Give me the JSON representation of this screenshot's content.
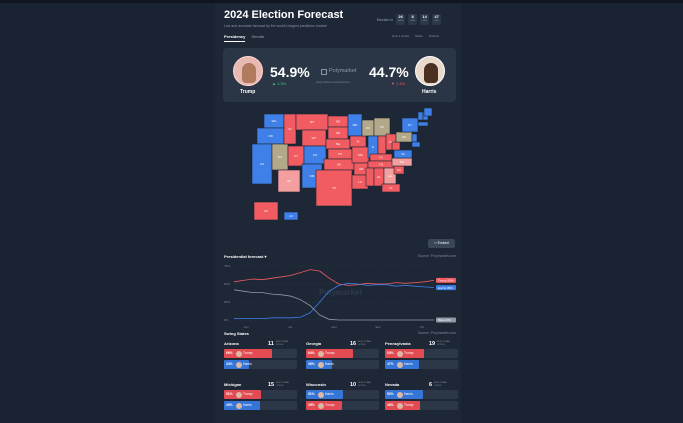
{
  "page": {
    "title": "2024 Election Forecast",
    "subtitle": "Live and accurate forecast by the world's largest prediction market"
  },
  "countdown": {
    "label": "Election in",
    "units": [
      {
        "n": "26",
        "u": "DAYS"
      },
      {
        "n": "8",
        "u": "HRS"
      },
      {
        "n": "14",
        "u": "MIN"
      },
      {
        "n": "47",
        "u": "SEC"
      }
    ]
  },
  "tabs": [
    "Presidency",
    "Senate"
  ],
  "tab_actions": [
    "How it works",
    "Share",
    "Embed"
  ],
  "summary": {
    "trump": {
      "name": "Trump",
      "pct": "54.9%",
      "change": "▲ 1.3%"
    },
    "harris": {
      "name": "Harris",
      "pct": "44.7%",
      "change": "▼ 1.4%"
    },
    "brand": "Polymarket",
    "url": "polymarket.com/elections"
  },
  "map": {
    "colors": {
      "solid_red": "#f15c62",
      "lean_red": "#f49ea0",
      "solid_blue": "#3e7fe8",
      "tossup": "#b3a88a",
      "lean_blue": "#8cb2ee"
    },
    "states": [
      {
        "id": "WA",
        "c": "solid_blue"
      },
      {
        "id": "OR",
        "c": "solid_blue"
      },
      {
        "id": "CA",
        "c": "solid_blue"
      },
      {
        "id": "NV",
        "c": "tossup"
      },
      {
        "id": "ID",
        "c": "solid_red"
      },
      {
        "id": "MT",
        "c": "solid_red"
      },
      {
        "id": "WY",
        "c": "solid_red"
      },
      {
        "id": "UT",
        "c": "solid_red"
      },
      {
        "id": "AZ",
        "c": "lean_red"
      },
      {
        "id": "CO",
        "c": "solid_blue"
      },
      {
        "id": "NM",
        "c": "solid_blue"
      },
      {
        "id": "ND",
        "c": "solid_red"
      },
      {
        "id": "SD",
        "c": "solid_red"
      },
      {
        "id": "NE",
        "c": "solid_red"
      },
      {
        "id": "KS",
        "c": "solid_red"
      },
      {
        "id": "OK",
        "c": "solid_red"
      },
      {
        "id": "TX",
        "c": "solid_red"
      },
      {
        "id": "MN",
        "c": "solid_blue"
      },
      {
        "id": "IA",
        "c": "solid_red"
      },
      {
        "id": "MO",
        "c": "solid_red"
      },
      {
        "id": "AR",
        "c": "solid_red"
      },
      {
        "id": "LA",
        "c": "solid_red"
      },
      {
        "id": "WI",
        "c": "tossup"
      },
      {
        "id": "MI",
        "c": "tossup"
      },
      {
        "id": "IL",
        "c": "solid_blue"
      },
      {
        "id": "IN",
        "c": "solid_red"
      },
      {
        "id": "OH",
        "c": "solid_red"
      },
      {
        "id": "KY",
        "c": "solid_red"
      },
      {
        "id": "TN",
        "c": "solid_red"
      },
      {
        "id": "MS",
        "c": "solid_red"
      },
      {
        "id": "AL",
        "c": "solid_red"
      },
      {
        "id": "GA",
        "c": "lean_red"
      },
      {
        "id": "FL",
        "c": "solid_red"
      },
      {
        "id": "SC",
        "c": "solid_red"
      },
      {
        "id": "NC",
        "c": "lean_red"
      },
      {
        "id": "VA",
        "c": "solid_blue"
      },
      {
        "id": "WV",
        "c": "solid_red"
      },
      {
        "id": "PA",
        "c": "tossup"
      },
      {
        "id": "NY",
        "c": "solid_blue"
      },
      {
        "id": "VT",
        "c": "solid_blue"
      },
      {
        "id": "NH",
        "c": "solid_blue"
      },
      {
        "id": "ME",
        "c": "solid_blue"
      },
      {
        "id": "MA",
        "c": "solid_blue"
      },
      {
        "id": "NJ",
        "c": "solid_blue"
      },
      {
        "id": "MD",
        "c": "solid_blue"
      },
      {
        "id": "AK",
        "c": "solid_red"
      },
      {
        "id": "HI",
        "c": "solid_blue"
      }
    ]
  },
  "embed_label": "‹› Embed",
  "forecast": {
    "heading": "Presidential forecast ▾",
    "source": "Source: Polymarket.com"
  },
  "chart_data": {
    "type": "line",
    "title": "Presidential forecast",
    "ylabel": "",
    "x_ticks": [
      "Jun",
      "Jul",
      "Aug",
      "Sep",
      "Oct"
    ],
    "y_ticks": [
      "75%",
      "50%",
      "25%",
      "0%"
    ],
    "ylim": [
      0,
      75
    ],
    "series": [
      {
        "name": "Trump",
        "label": "Trump 55%",
        "color": "#f15c62",
        "values": [
          53,
          55,
          57,
          56,
          58,
          60,
          62,
          66,
          70,
          68,
          58,
          50,
          48,
          49,
          51,
          50,
          50,
          52,
          51,
          52,
          53,
          55
        ]
      },
      {
        "name": "Harris",
        "label": "Harris 45%",
        "color": "#3e7fe8",
        "values": [
          2,
          2,
          2,
          2,
          3,
          3,
          3,
          4,
          10,
          25,
          40,
          48,
          51,
          50,
          48,
          49,
          49,
          47,
          48,
          47,
          46,
          45
        ]
      },
      {
        "name": "Biden",
        "label": "Biden 0%",
        "color": "#8e98a6",
        "values": [
          42,
          40,
          38,
          38,
          36,
          35,
          33,
          28,
          20,
          7,
          1,
          0,
          0,
          0,
          0,
          0,
          0,
          0,
          0,
          0,
          0,
          0
        ]
      }
    ]
  },
  "swing": {
    "heading": "Swing States",
    "source": "Source: Polymarket.com",
    "ev_label": "ELECTORAL VOTES",
    "states": [
      {
        "name": "Arizona",
        "ev": "11",
        "rows": [
          {
            "pct": "66%",
            "cand": "Trump",
            "fill": 0.66,
            "color": "#e34b53"
          },
          {
            "pct": "34%",
            "cand": "Harris",
            "fill": 0.34,
            "color": "#3575d8"
          }
        ]
      },
      {
        "name": "Georgia",
        "ev": "16",
        "rows": [
          {
            "pct": "64%",
            "cand": "Trump",
            "fill": 0.64,
            "color": "#e34b53"
          },
          {
            "pct": "36%",
            "cand": "Harris",
            "fill": 0.36,
            "color": "#3575d8"
          }
        ]
      },
      {
        "name": "Pennsylvania",
        "ev": "19",
        "rows": [
          {
            "pct": "53%",
            "cand": "Trump",
            "fill": 0.53,
            "color": "#e34b53"
          },
          {
            "pct": "47%",
            "cand": "Harris",
            "fill": 0.47,
            "color": "#3575d8"
          }
        ]
      },
      {
        "name": "Michigan",
        "ev": "15",
        "rows": [
          {
            "pct": "51%",
            "cand": "Trump",
            "fill": 0.51,
            "color": "#e34b53"
          },
          {
            "pct": "49%",
            "cand": "Harris",
            "fill": 0.49,
            "color": "#3575d8"
          }
        ]
      },
      {
        "name": "Wisconsin",
        "ev": "10",
        "rows": [
          {
            "pct": "51%",
            "cand": "Harris",
            "fill": 0.51,
            "color": "#3575d8"
          },
          {
            "pct": "49%",
            "cand": "Trump",
            "fill": 0.49,
            "color": "#e34b53"
          }
        ]
      },
      {
        "name": "Nevada",
        "ev": "6",
        "rows": [
          {
            "pct": "52%",
            "cand": "Harris",
            "fill": 0.52,
            "color": "#3575d8"
          },
          {
            "pct": "48%",
            "cand": "Trump",
            "fill": 0.48,
            "color": "#e34b53"
          }
        ]
      }
    ]
  }
}
